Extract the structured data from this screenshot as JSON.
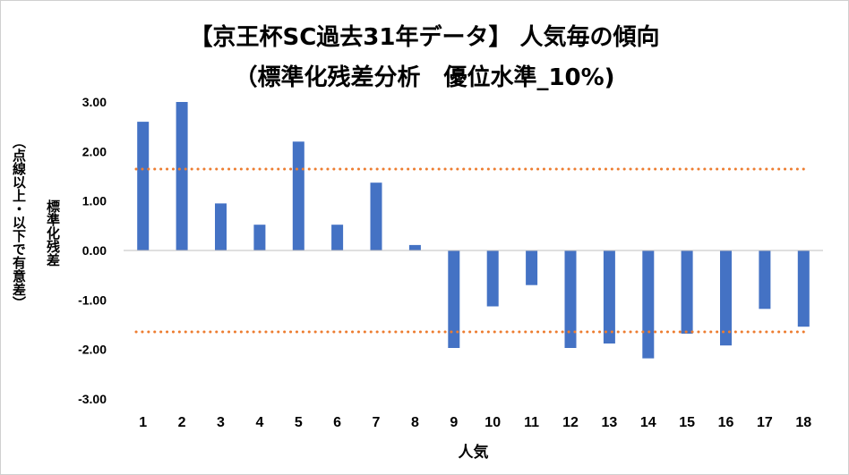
{
  "chart_data": {
    "type": "bar",
    "title": "【京王杯SC過去31年データ】 人気毎の傾向",
    "subtitle": "（標準化残差分析　優位水準_10%)",
    "xlabel": "人気",
    "ylabel": "標準化残差",
    "ylabel_note": "（点線以上・以下で有意差）",
    "categories": [
      "1",
      "2",
      "3",
      "4",
      "5",
      "6",
      "7",
      "8",
      "9",
      "10",
      "11",
      "12",
      "13",
      "14",
      "15",
      "16",
      "17",
      "18"
    ],
    "values": [
      2.6,
      3.0,
      0.95,
      0.52,
      2.2,
      0.52,
      1.37,
      0.11,
      -1.97,
      -1.13,
      -0.7,
      -1.97,
      -1.88,
      -2.18,
      -1.68,
      -1.92,
      -1.18,
      -1.54
    ],
    "ylim": [
      -3,
      3
    ],
    "yticks": [
      "3.00",
      "2.00",
      "1.00",
      "0.00",
      "-1.00",
      "-2.00",
      "-3.00"
    ],
    "threshold_upper": 1.645,
    "threshold_lower": -1.645,
    "colors": {
      "bar": "#4472C4",
      "threshold": "#ED7D31",
      "axis": "#BFBFBF"
    }
  }
}
